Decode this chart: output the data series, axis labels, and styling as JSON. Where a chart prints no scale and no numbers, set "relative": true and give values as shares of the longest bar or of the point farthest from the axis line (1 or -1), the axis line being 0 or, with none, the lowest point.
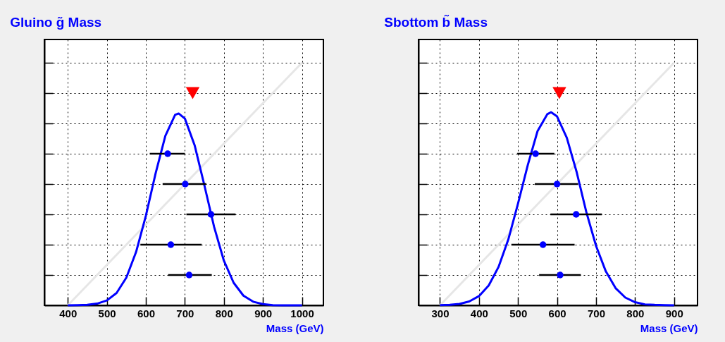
{
  "chart_data": [
    {
      "type": "scatter",
      "title": "Gluino g̃ Mass",
      "xlabel": "Mass (GeV)",
      "relative": true,
      "xlim": [
        340,
        1055
      ],
      "xticks": [
        400,
        500,
        600,
        700,
        800,
        900,
        1000
      ],
      "grid": true,
      "series": [
        {
          "type": "line",
          "color": "#e6e6e6",
          "marker": "none",
          "x": [
            400,
            1000
          ],
          "values": [
            0,
            1
          ]
        },
        {
          "type": "line",
          "color": "#0000ff",
          "marker": "none",
          "x": [
            400,
            425,
            450,
            475,
            500,
            525,
            550,
            575,
            600,
            625,
            650,
            675,
            684,
            700,
            725,
            750,
            775,
            800,
            825,
            850,
            875,
            900,
            925,
            950,
            975,
            1000
          ],
          "values": [
            0,
            0.001,
            0.002,
            0.007,
            0.02,
            0.051,
            0.114,
            0.22,
            0.369,
            0.544,
            0.699,
            0.785,
            0.791,
            0.77,
            0.66,
            0.495,
            0.323,
            0.184,
            0.093,
            0.04,
            0.015,
            0.005,
            0.001,
            0,
            0,
            0
          ]
        },
        {
          "type": "scatter",
          "color": "#0000ff",
          "marker": "circle",
          "x": [
            656,
            701,
            767,
            664,
            711
          ],
          "values": [
            0.625,
            0.5,
            0.375,
            0.25,
            0.125
          ],
          "xerrors": [
            [
              610,
              700
            ],
            [
              643,
              755
            ],
            [
              704,
              830
            ],
            [
              586,
              743
            ],
            [
              657,
              769
            ]
          ]
        },
        {
          "type": "scatter",
          "color": "#ff0000",
          "marker": "triangle",
          "x": [
            720
          ],
          "values": [
            0.875
          ]
        }
      ]
    },
    {
      "type": "scatter",
      "title": "Sbottom b̃ Mass",
      "xlabel": "Mass (GeV)",
      "relative": true,
      "xlim": [
        245,
        960
      ],
      "xticks": [
        300,
        400,
        500,
        600,
        700,
        800,
        900
      ],
      "grid": true,
      "series": [
        {
          "type": "line",
          "color": "#e6e6e6",
          "marker": "none",
          "x": [
            300,
            900
          ],
          "values": [
            0,
            1
          ]
        },
        {
          "type": "line",
          "color": "#0000ff",
          "marker": "none",
          "x": [
            300,
            325,
            350,
            375,
            400,
            425,
            450,
            475,
            500,
            525,
            550,
            575,
            585,
            600,
            625,
            650,
            675,
            700,
            725,
            750,
            775,
            800,
            825,
            850,
            875,
            900
          ],
          "values": [
            0.001,
            0.002,
            0.006,
            0.016,
            0.038,
            0.082,
            0.158,
            0.271,
            0.42,
            0.578,
            0.718,
            0.788,
            0.796,
            0.779,
            0.691,
            0.551,
            0.385,
            0.245,
            0.14,
            0.071,
            0.032,
            0.013,
            0.004,
            0.002,
            0.001,
            0
          ]
        },
        {
          "type": "scatter",
          "color": "#0000ff",
          "marker": "circle",
          "x": [
            545,
            600,
            649,
            564,
            608
          ],
          "values": [
            0.625,
            0.5,
            0.375,
            0.25,
            0.125
          ],
          "xerrors": [
            [
              498,
              593
            ],
            [
              543,
              654
            ],
            [
              583,
              715
            ],
            [
              483,
              645
            ],
            [
              554,
              661
            ]
          ]
        },
        {
          "type": "scatter",
          "color": "#ff0000",
          "marker": "triangle",
          "x": [
            606
          ],
          "values": [
            0.875
          ]
        }
      ]
    }
  ]
}
